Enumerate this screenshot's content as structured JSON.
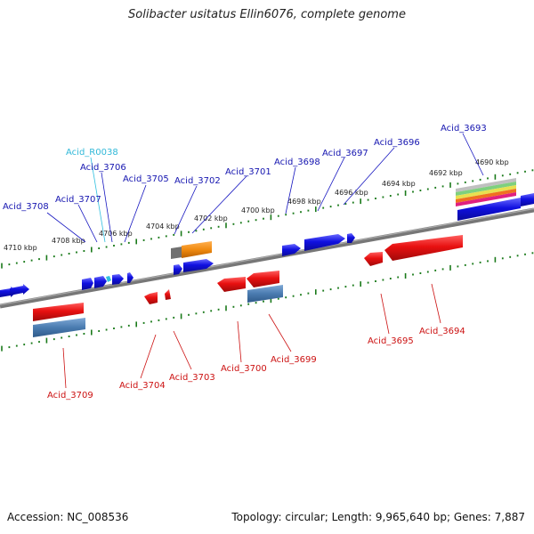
{
  "title": "Solibacter usitatus Ellin6076, complete genome",
  "footer": {
    "accession": "Accession: NC_008536",
    "summary": "Topology: circular; Length: 9,965,640 bp; Genes: 7,887"
  },
  "colors": {
    "forward_gene": "#1010e0",
    "reverse_gene": "#e01010",
    "cds_blue": "#4a7bb0",
    "cds_orange": "#f08a10",
    "label_forward": "#1515b0",
    "label_reverse": "#cc1111",
    "label_rna": "#30b8d8",
    "tick": "#1a7a1a"
  },
  "scale_labels": [
    "4710 kbp",
    "4708 kbp",
    "4706 kbp",
    "4704 kbp",
    "4702 kbp",
    "4700 kbp",
    "4698 kbp",
    "4696 kbp",
    "4694 kbp",
    "4692 kbp",
    "4690 kbp"
  ],
  "genes_forward": [
    {
      "label": "Acid_3708",
      "color": "label_forward"
    },
    {
      "label": "Acid_3707",
      "color": "label_forward"
    },
    {
      "label": "Acid_R0038",
      "color": "label_rna"
    },
    {
      "label": "Acid_3706",
      "color": "label_forward"
    },
    {
      "label": "Acid_3705",
      "color": "label_forward"
    },
    {
      "label": "Acid_3702",
      "color": "label_forward"
    },
    {
      "label": "Acid_3701",
      "color": "label_forward"
    },
    {
      "label": "Acid_3698",
      "color": "label_forward"
    },
    {
      "label": "Acid_3697",
      "color": "label_forward"
    },
    {
      "label": "Acid_3696",
      "color": "label_forward"
    },
    {
      "label": "Acid_3693",
      "color": "label_forward"
    }
  ],
  "genes_reverse": [
    {
      "label": "Acid_3709"
    },
    {
      "label": "Acid_3704"
    },
    {
      "label": "Acid_3703"
    },
    {
      "label": "Acid_3700"
    },
    {
      "label": "Acid_3699"
    },
    {
      "label": "Acid_3695"
    },
    {
      "label": "Acid_3694"
    }
  ]
}
